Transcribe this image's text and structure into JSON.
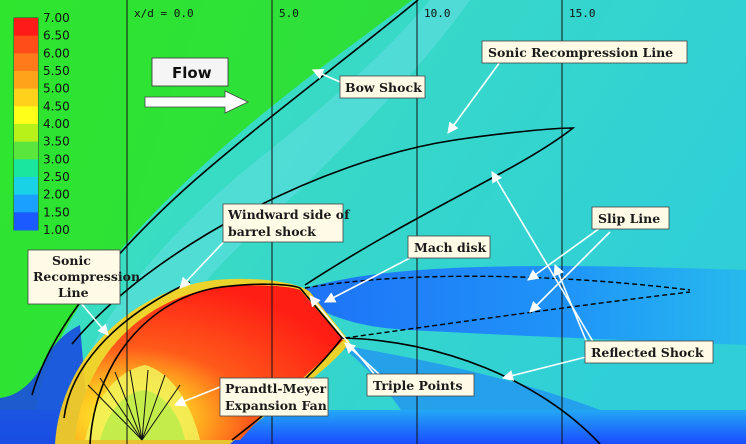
{
  "colorbar": {
    "levels": [
      "7.00",
      "6.50",
      "6.00",
      "5.50",
      "5.00",
      "4.50",
      "4.00",
      "3.50",
      "3.00",
      "2.50",
      "2.00",
      "1.50",
      "1.00"
    ],
    "colors": [
      "#ff1a1a",
      "#ff4d1a",
      "#ff7a1a",
      "#ffa31a",
      "#ffd11a",
      "#ffff1a",
      "#b8f01a",
      "#5ae63c",
      "#1ae6a0",
      "#1ad2e6",
      "#1aa0ff",
      "#1a5aff",
      "#1a1acc"
    ]
  },
  "axis": {
    "stations": [
      "x/d = 0.0",
      "5.0",
      "10.0",
      "15.0"
    ]
  },
  "flow": {
    "label": "Flow"
  },
  "annotations": {
    "bow_shock": "Bow Shock",
    "sonic_line_top": "Sonic Recompression Line",
    "windward_1": "Windward side of",
    "windward_2": "barrel shock",
    "slip_line": "Slip Line",
    "mach_disk": "Mach disk",
    "sonic_left_1": "Sonic",
    "sonic_left_2": "Recompression",
    "sonic_left_3": "Line",
    "reflected_shock": "Reflected Shock",
    "triple_points": "Triple Points",
    "prandtl_1": "Prandtl-Meyer",
    "prandtl_2": "Expansion Fan"
  }
}
